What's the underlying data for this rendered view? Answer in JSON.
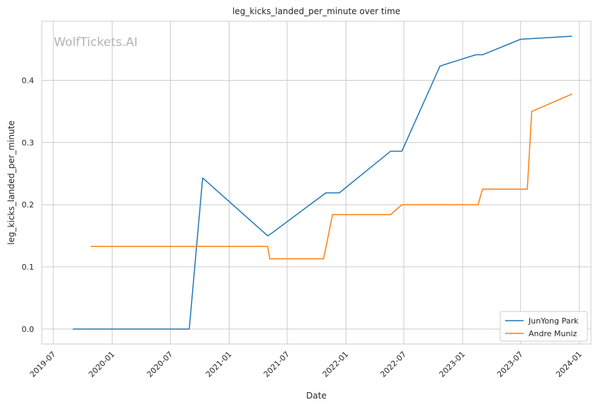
{
  "chart_data": {
    "type": "line",
    "title": "leg_kicks_landed_per_minute over time",
    "xlabel": "Date",
    "ylabel": "leg_kicks_landed_per_minute",
    "watermark": "WolfTickets.AI",
    "x_ticks": [
      "2019-07",
      "2020-01",
      "2020-07",
      "2021-01",
      "2021-07",
      "2022-01",
      "2022-07",
      "2023-01",
      "2023-07",
      "2024-01"
    ],
    "y_ticks": [
      "0.0",
      "0.1",
      "0.2",
      "0.3",
      "0.4"
    ],
    "xlim": [
      "2019-05-26",
      "2024-02-06"
    ],
    "ylim": [
      -0.024,
      0.495
    ],
    "grid": true,
    "legend_position": "lower right",
    "series": [
      {
        "name": "JunYong Park",
        "color": "#1f77b4",
        "points": [
          [
            "2019-08-31",
            0.0
          ],
          [
            "2020-08-29",
            0.0
          ],
          [
            "2020-10-10",
            0.243
          ],
          [
            "2021-05-01",
            0.15
          ],
          [
            "2021-05-08",
            0.152
          ],
          [
            "2021-10-30",
            0.219
          ],
          [
            "2021-12-11",
            0.219
          ],
          [
            "2022-05-21",
            0.286
          ],
          [
            "2022-06-25",
            0.286
          ],
          [
            "2022-10-22",
            0.423
          ],
          [
            "2023-02-11",
            0.441
          ],
          [
            "2023-03-04",
            0.441
          ],
          [
            "2023-07-01",
            0.466
          ],
          [
            "2023-12-09",
            0.471
          ]
        ]
      },
      {
        "name": "Andre Muniz",
        "color": "#ff7f0e",
        "points": [
          [
            "2019-10-26",
            0.133
          ],
          [
            "2021-05-01",
            0.133
          ],
          [
            "2021-05-08",
            0.113
          ],
          [
            "2021-10-23",
            0.113
          ],
          [
            "2021-11-20",
            0.184
          ],
          [
            "2022-05-21",
            0.184
          ],
          [
            "2022-06-25",
            0.2
          ],
          [
            "2023-02-18",
            0.2
          ],
          [
            "2023-03-04",
            0.225
          ],
          [
            "2023-07-22",
            0.225
          ],
          [
            "2023-08-05",
            0.35
          ],
          [
            "2023-12-09",
            0.378
          ]
        ]
      }
    ]
  }
}
